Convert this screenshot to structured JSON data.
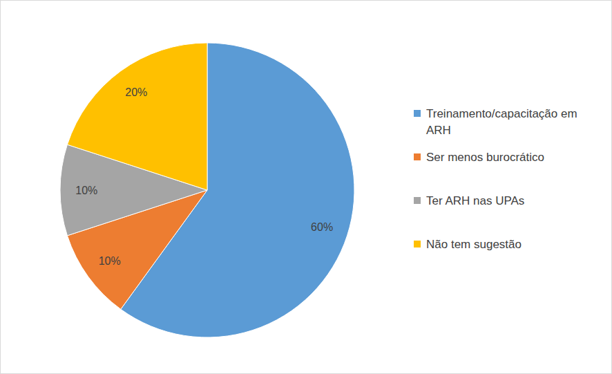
{
  "chart_data": {
    "type": "pie",
    "categories": [
      "Treinamento/capacitação em ARH",
      "Ser menos burocrático",
      "Ter ARH nas UPAs",
      "Não tem sugestão"
    ],
    "values": [
      60,
      10,
      10,
      20
    ],
    "value_labels": [
      "60%",
      "10%",
      "10%",
      "20%"
    ],
    "colors": [
      "#5b9bd5",
      "#ed7d31",
      "#a5a5a5",
      "#ffc000"
    ],
    "data_labels": true,
    "legend": "right"
  }
}
